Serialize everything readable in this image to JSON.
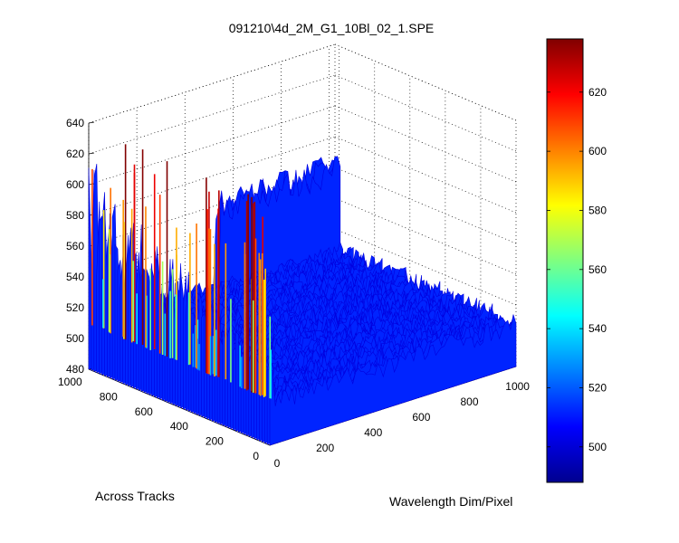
{
  "chart_data": {
    "type": "surface",
    "title": "091210\\4d_2M_G1_10Bl_02_1.SPE",
    "xlabel": "Wavelength Dim/Pixel",
    "ylabel": "Across Tracks",
    "zlabel": "",
    "xlim": [
      0,
      1024
    ],
    "ylim": [
      0,
      1024
    ],
    "zlim": [
      480,
      640
    ],
    "x_ticks": [
      "0",
      "200",
      "400",
      "600",
      "800",
      "1000"
    ],
    "y_ticks": [
      "0",
      "200",
      "400",
      "600",
      "800",
      "1000"
    ],
    "z_ticks": [
      "480",
      "500",
      "520",
      "540",
      "560",
      "580",
      "600",
      "620",
      "640"
    ],
    "colormap": "jet",
    "colorbar": {
      "range": [
        488,
        638
      ],
      "ticks": [
        "500",
        "520",
        "540",
        "560",
        "580",
        "600",
        "620"
      ]
    },
    "grid": true,
    "description_values": {
      "baseline_level": 508,
      "peak_region_level": 615,
      "far_edge_spike_level": 560
    }
  }
}
